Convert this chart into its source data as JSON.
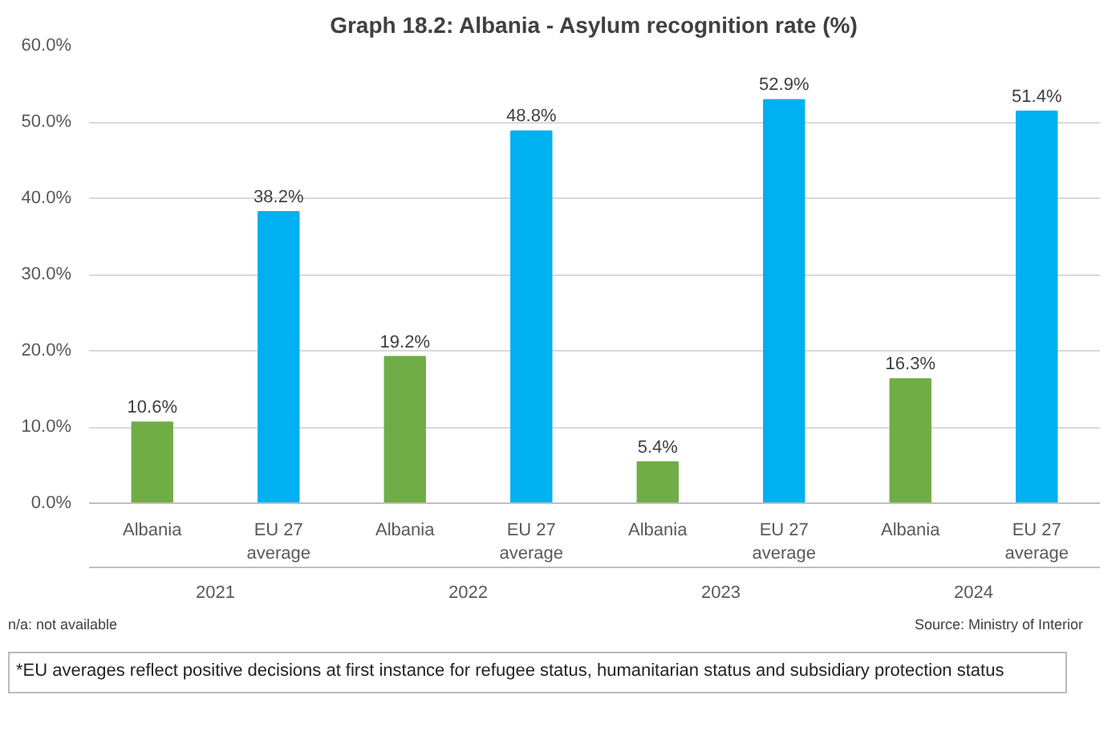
{
  "chart_data": {
    "type": "bar",
    "title": "Graph 18.2: Albania - Asylum recognition rate (%)",
    "categories": [
      "2021",
      "2022",
      "2023",
      "2024"
    ],
    "series": [
      {
        "name": "Albania",
        "color": "#70ad47",
        "values": [
          10.6,
          19.2,
          5.4,
          16.3
        ],
        "value_labels": [
          "10.6%",
          "19.2%",
          "5.4%",
          "16.3%"
        ]
      },
      {
        "name": "EU 27 average",
        "color": "#00b0f0",
        "values": [
          38.2,
          48.8,
          52.9,
          51.4
        ],
        "value_labels": [
          "38.2%",
          "48.8%",
          "52.9%",
          "51.4%"
        ]
      }
    ],
    "ylim": [
      0,
      60
    ],
    "yticks": [
      {
        "value": 0,
        "label": "0.0%"
      },
      {
        "value": 10,
        "label": "10.0%"
      },
      {
        "value": 20,
        "label": "20.0%"
      },
      {
        "value": 30,
        "label": "30.0%"
      },
      {
        "value": 40,
        "label": "40.0%"
      },
      {
        "value": 50,
        "label": "50.0%"
      },
      {
        "value": 60,
        "label": "60.0%"
      }
    ],
    "grid": "y",
    "legend": false,
    "annotations": [
      "n/a: not available",
      "Source: Ministry of Interior",
      "*EU averages reflect positive decisions at first instance for refugee status, humanitarian status and subsidiary protection status"
    ]
  }
}
